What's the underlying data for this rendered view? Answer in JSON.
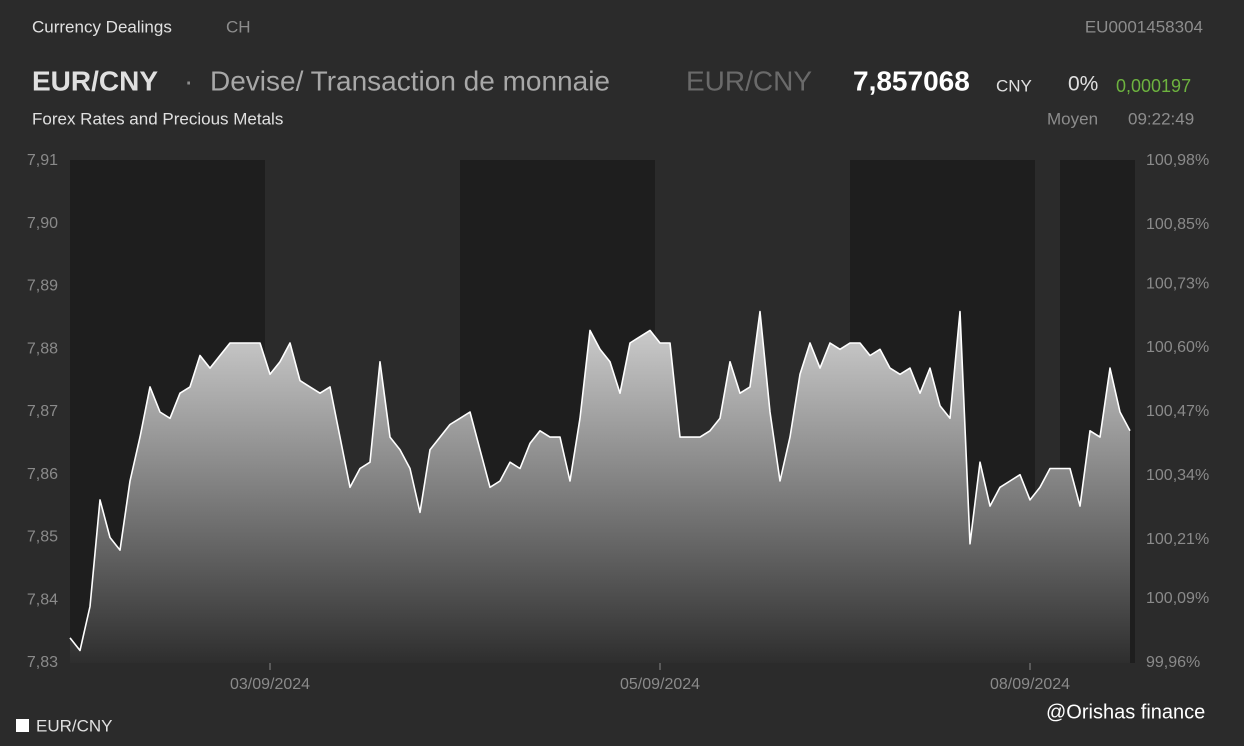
{
  "header": {
    "section": "Currency Dealings",
    "country": "CH",
    "isin": "EU0001458304",
    "symbol": "EUR/CNY",
    "separator": "·",
    "description": "Devise/ Transaction de monnaie",
    "symbol_alt": "EUR/CNY",
    "price": "7,857068",
    "currency": "CNY",
    "change_pct": "0%",
    "change": "0,000197",
    "category": "Forex Rates and Precious Metals",
    "price_type": "Moyen",
    "time": "09:22:49"
  },
  "watermark": "@Orishas finance",
  "chart_data": {
    "type": "area",
    "categories": [
      null,
      null,
      null,
      null,
      null,
      null,
      null,
      null,
      null,
      null,
      null,
      null,
      null,
      null,
      null,
      null,
      null,
      null,
      null,
      null,
      "03/09/2024",
      null,
      null,
      null,
      null,
      null,
      null,
      null,
      null,
      null,
      null,
      null,
      null,
      null,
      null,
      null,
      null,
      null,
      null,
      null,
      null,
      null,
      null,
      null,
      null,
      null,
      null,
      null,
      null,
      null,
      null,
      null,
      null,
      null,
      null,
      null,
      null,
      null,
      null,
      "05/09/2024",
      null,
      null,
      null,
      null,
      null,
      null,
      null,
      null,
      null,
      null,
      null,
      null,
      null,
      null,
      null,
      null,
      null,
      null,
      null,
      null,
      null,
      null,
      null,
      null,
      null,
      null,
      null,
      null,
      null,
      null,
      null,
      null,
      null,
      null,
      null,
      null,
      "08/09/2024",
      null,
      null,
      null,
      null,
      null,
      null,
      null,
      null,
      null,
      null
    ],
    "series": [
      {
        "name": "EUR/CNY",
        "color": "#ffffff",
        "values": [
          7.834,
          7.832,
          7.839,
          7.856,
          7.85,
          7.848,
          7.859,
          7.866,
          7.874,
          7.87,
          7.869,
          7.873,
          7.874,
          7.879,
          7.877,
          7.879,
          7.881,
          7.881,
          7.881,
          7.881,
          7.876,
          7.878,
          7.881,
          7.875,
          7.874,
          7.873,
          7.874,
          7.866,
          7.858,
          7.861,
          7.862,
          7.878,
          7.866,
          7.864,
          7.861,
          7.854,
          7.864,
          7.866,
          7.868,
          7.869,
          7.87,
          7.864,
          7.858,
          7.859,
          7.862,
          7.861,
          7.865,
          7.867,
          7.866,
          7.866,
          7.859,
          7.869,
          7.883,
          7.88,
          7.878,
          7.873,
          7.881,
          7.882,
          7.883,
          7.881,
          7.881,
          7.866,
          7.866,
          7.866,
          7.867,
          7.869,
          7.878,
          7.873,
          7.874,
          7.886,
          7.87,
          7.859,
          7.866,
          7.876,
          7.881,
          7.877,
          7.881,
          7.88,
          7.881,
          7.881,
          7.879,
          7.88,
          7.877,
          7.876,
          7.877,
          7.873,
          7.877,
          7.871,
          7.869,
          7.886,
          7.849,
          7.862,
          7.855,
          7.858,
          7.859,
          7.86,
          7.856,
          7.858,
          7.861,
          7.861,
          7.861,
          7.855,
          7.867,
          7.866,
          7.877,
          7.87,
          7.867
        ]
      }
    ],
    "ylim": [
      7.83,
      7.91
    ],
    "yticks": [
      {
        "value": 7.83,
        "label": "7,83"
      },
      {
        "value": 7.84,
        "label": "7,84"
      },
      {
        "value": 7.85,
        "label": "7,85"
      },
      {
        "value": 7.86,
        "label": "7,86"
      },
      {
        "value": 7.87,
        "label": "7,87"
      },
      {
        "value": 7.88,
        "label": "7,88"
      },
      {
        "value": 7.89,
        "label": "7,89"
      },
      {
        "value": 7.9,
        "label": "7,90"
      },
      {
        "value": 7.91,
        "label": "7,91"
      }
    ],
    "y2lim": [
      99.96,
      100.98
    ],
    "y2ticks": [
      {
        "value": 99.96,
        "label": "99,96%"
      },
      {
        "value": 100.09,
        "label": "100,09%"
      },
      {
        "value": 100.21,
        "label": "100,21%"
      },
      {
        "value": 100.34,
        "label": "100,34%"
      },
      {
        "value": 100.47,
        "label": "100,47%"
      },
      {
        "value": 100.6,
        "label": "100,60%"
      },
      {
        "value": 100.73,
        "label": "100,73%"
      },
      {
        "value": 100.85,
        "label": "100,85%"
      },
      {
        "value": 100.98,
        "label": "100,98%"
      }
    ]
  }
}
